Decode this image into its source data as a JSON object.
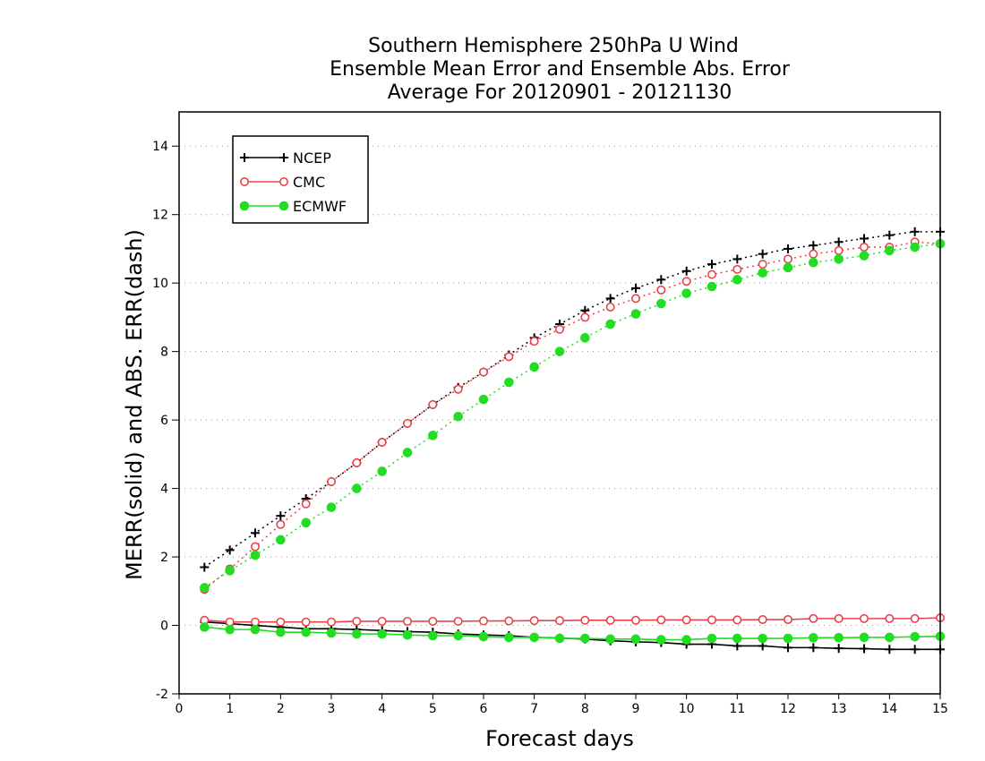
{
  "chart_data": {
    "type": "line",
    "title_lines": [
      "Southern Hemisphere 250hPa U Wind",
      "Ensemble Mean Error and Ensemble Abs. Error",
      "Average For 20120901 - 20121130"
    ],
    "xlabel": "Forecast days",
    "ylabel": "MERR(solid) and ABS. ERR(dash)",
    "xlim": [
      0,
      15
    ],
    "ylim": [
      -2,
      15
    ],
    "xticks": [
      "0",
      "1",
      "2",
      "3",
      "4",
      "5",
      "6",
      "7",
      "8",
      "9",
      "10",
      "11",
      "12",
      "13",
      "14",
      "15"
    ],
    "yticks": [
      "-2",
      "0",
      "2",
      "4",
      "6",
      "8",
      "10",
      "12",
      "14"
    ],
    "grid": "horizontal dotted",
    "legend_placement": "top-left",
    "x": [
      0.5,
      1,
      1.5,
      2,
      2.5,
      3,
      3.5,
      4,
      4.5,
      5,
      5.5,
      6,
      6.5,
      7,
      7.5,
      8,
      8.5,
      9,
      9.5,
      10,
      10.5,
      11,
      11.5,
      12,
      12.5,
      13,
      13.5,
      14,
      14.5,
      15
    ],
    "series": [
      {
        "name": "NCEP",
        "color": "#000000",
        "marker": "plus",
        "abs_err": [
          1.7,
          2.2,
          2.7,
          3.2,
          3.7,
          4.2,
          4.75,
          5.35,
          5.9,
          6.45,
          6.95,
          7.4,
          7.9,
          8.4,
          8.8,
          9.2,
          9.55,
          9.85,
          10.1,
          10.35,
          10.55,
          10.7,
          10.85,
          11.0,
          11.1,
          11.2,
          11.3,
          11.4,
          11.5,
          11.5
        ],
        "mean_err": [
          0.1,
          0.05,
          0.0,
          -0.05,
          -0.1,
          -0.1,
          -0.12,
          -0.15,
          -0.18,
          -0.2,
          -0.25,
          -0.28,
          -0.3,
          -0.35,
          -0.37,
          -0.4,
          -0.45,
          -0.48,
          -0.5,
          -0.55,
          -0.55,
          -0.6,
          -0.6,
          -0.65,
          -0.65,
          -0.67,
          -0.68,
          -0.7,
          -0.7,
          -0.7
        ]
      },
      {
        "name": "CMC",
        "color": "#e8434a",
        "marker": "circle-open",
        "abs_err": [
          1.05,
          1.65,
          2.3,
          2.95,
          3.55,
          4.2,
          4.75,
          5.35,
          5.9,
          6.45,
          6.9,
          7.4,
          7.85,
          8.3,
          8.65,
          9.0,
          9.3,
          9.55,
          9.8,
          10.05,
          10.25,
          10.4,
          10.55,
          10.7,
          10.85,
          10.95,
          11.05,
          11.05,
          11.2,
          11.15
        ],
        "mean_err": [
          0.15,
          0.1,
          0.1,
          0.1,
          0.1,
          0.1,
          0.12,
          0.12,
          0.12,
          0.12,
          0.12,
          0.13,
          0.13,
          0.14,
          0.14,
          0.15,
          0.15,
          0.15,
          0.16,
          0.16,
          0.16,
          0.16,
          0.17,
          0.17,
          0.2,
          0.2,
          0.2,
          0.2,
          0.2,
          0.22
        ]
      },
      {
        "name": "ECMWF",
        "color": "#22dd22",
        "marker": "circle-filled",
        "abs_err": [
          1.1,
          1.6,
          2.05,
          2.5,
          3.0,
          3.45,
          4.0,
          4.5,
          5.05,
          5.55,
          6.1,
          6.6,
          7.1,
          7.55,
          8.0,
          8.4,
          8.8,
          9.1,
          9.4,
          9.7,
          9.9,
          10.1,
          10.3,
          10.45,
          10.6,
          10.7,
          10.8,
          10.95,
          11.05,
          11.15
        ],
        "mean_err": [
          -0.05,
          -0.12,
          -0.12,
          -0.2,
          -0.2,
          -0.22,
          -0.25,
          -0.25,
          -0.28,
          -0.3,
          -0.3,
          -0.33,
          -0.35,
          -0.35,
          -0.38,
          -0.38,
          -0.4,
          -0.4,
          -0.42,
          -0.42,
          -0.38,
          -0.38,
          -0.38,
          -0.38,
          -0.36,
          -0.36,
          -0.35,
          -0.35,
          -0.33,
          -0.32
        ]
      }
    ]
  }
}
